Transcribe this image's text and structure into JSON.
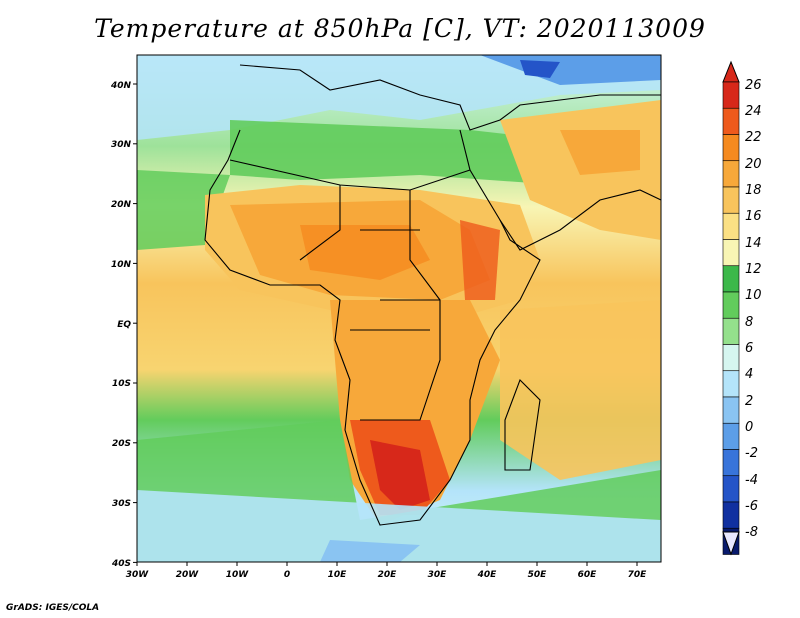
{
  "title": "Temperature at 850hPa [C], VT: 2020113009",
  "footer": "GrADS: IGES/COLA",
  "map": {
    "lon_range": [
      -30,
      75
    ],
    "lat_range": [
      -40,
      45
    ],
    "lon_ticks": [
      "30W",
      "20W",
      "10W",
      "0",
      "10E",
      "20E",
      "30E",
      "40E",
      "50E",
      "60E",
      "70E"
    ],
    "lat_ticks": [
      "40N",
      "30N",
      "20N",
      "10N",
      "EQ",
      "10S",
      "20S",
      "30S",
      "40S"
    ]
  },
  "colorbar": {
    "labels": [
      "26",
      "24",
      "22",
      "20",
      "18",
      "16",
      "14",
      "12",
      "10",
      "8",
      "6",
      "4",
      "2",
      "0",
      "-2",
      "-4",
      "-6",
      "-8"
    ],
    "colors": [
      "#d7281a",
      "#ee5a1c",
      "#f58a1f",
      "#f7a83a",
      "#f8c45c",
      "#fbe084",
      "#f8f5b4",
      "#3cb84a",
      "#62cc5c",
      "#94e08c",
      "#d6f6f0",
      "#b4e4fa",
      "#8ac4f2",
      "#5c9ee8",
      "#3874da",
      "#2454c8",
      "#1030a0",
      "#081a6c"
    ]
  }
}
